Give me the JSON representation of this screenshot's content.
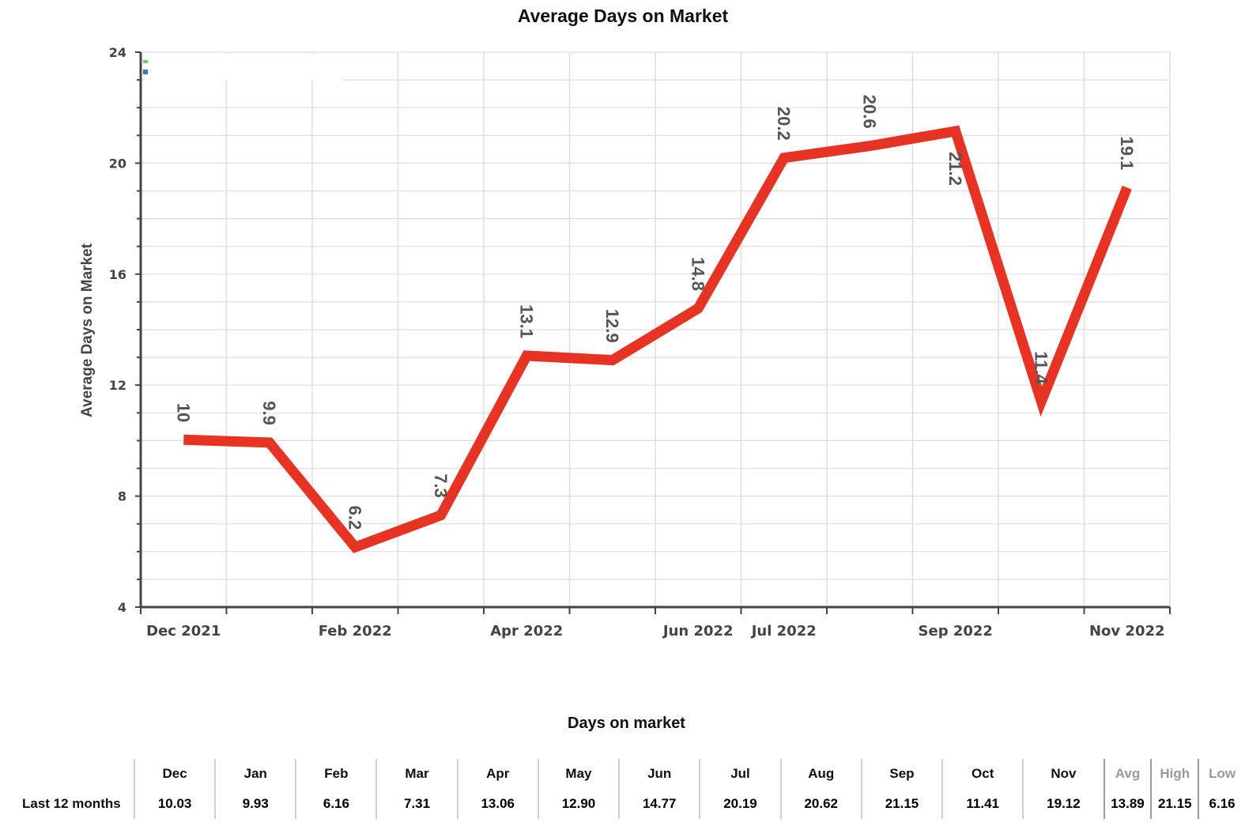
{
  "chart_data": {
    "type": "line",
    "title": "Average Days on Market",
    "ylabel": "Average Days on Market",
    "xlabel": "",
    "ylim": [
      4,
      24
    ],
    "yticks": [
      4,
      8,
      12,
      16,
      20,
      24
    ],
    "x_tick_labels": [
      "Dec 2021",
      "Feb 2022",
      "Apr 2022",
      "Jun 2022",
      "Jul 2022",
      "Sep 2022",
      "Nov 2022"
    ],
    "grid": true,
    "series": [
      {
        "color": "#e63323",
        "x": [
          "Dec 2021",
          "Jan 2022",
          "Feb 2022",
          "Mar 2022",
          "Apr 2022",
          "May 2022",
          "Jun 2022",
          "Jul 2022",
          "Aug 2022",
          "Sep 2022",
          "Oct 2022",
          "Nov 2022"
        ],
        "values": [
          10.03,
          9.93,
          6.16,
          7.31,
          13.06,
          12.9,
          14.77,
          20.19,
          20.62,
          21.15,
          11.41,
          19.12
        ],
        "data_labels": [
          "10",
          "9.9",
          "6.2",
          "7.3",
          "13.1",
          "12.9",
          "14.8",
          "20.2",
          "20.6",
          "21.2",
          "11.4",
          "19.1"
        ]
      }
    ]
  },
  "table": {
    "title": "Days on market",
    "row_label": "Last 12 months",
    "months": [
      "Dec",
      "Jan",
      "Feb",
      "Mar",
      "Apr",
      "May",
      "Jun",
      "Jul",
      "Aug",
      "Sep",
      "Oct",
      "Nov"
    ],
    "values": [
      "10.03",
      "9.93",
      "6.16",
      "7.31",
      "13.06",
      "12.90",
      "14.77",
      "20.19",
      "20.62",
      "21.15",
      "11.41",
      "19.12"
    ],
    "stats": [
      {
        "label": "Avg",
        "value": "13.89"
      },
      {
        "label": "High",
        "value": "21.15"
      },
      {
        "label": "Low",
        "value": "6.16"
      }
    ]
  }
}
